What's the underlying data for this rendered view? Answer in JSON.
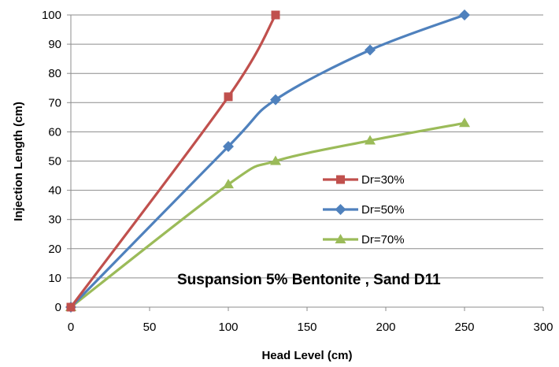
{
  "chart_data": {
    "type": "line",
    "title": "",
    "xlabel": "Head Level (cm)",
    "ylabel": "Injection Length (cm)",
    "xlim": [
      0,
      300
    ],
    "ylim": [
      0,
      100
    ],
    "xticks": [
      0,
      50,
      100,
      150,
      200,
      250,
      300
    ],
    "yticks": [
      0,
      10,
      20,
      30,
      40,
      50,
      60,
      70,
      80,
      90,
      100
    ],
    "grid": "horizontal",
    "legend_position": "center-right",
    "annotation": "Suspansion  5% Bentonite , Sand   D11",
    "series": [
      {
        "name": "Dr=30%",
        "color": "#c0504d",
        "marker": "square",
        "x": [
          0,
          100,
          130
        ],
        "y": [
          0,
          72,
          100
        ]
      },
      {
        "name": "Dr=50%",
        "color": "#4f81bd",
        "marker": "diamond",
        "x": [
          0,
          100,
          130,
          190,
          250
        ],
        "y": [
          0,
          55,
          71,
          88,
          100
        ]
      },
      {
        "name": "Dr=70%",
        "color": "#9bbb59",
        "marker": "triangle",
        "x": [
          0,
          100,
          130,
          190,
          250
        ],
        "y": [
          0,
          42,
          50,
          57,
          63
        ]
      }
    ]
  }
}
